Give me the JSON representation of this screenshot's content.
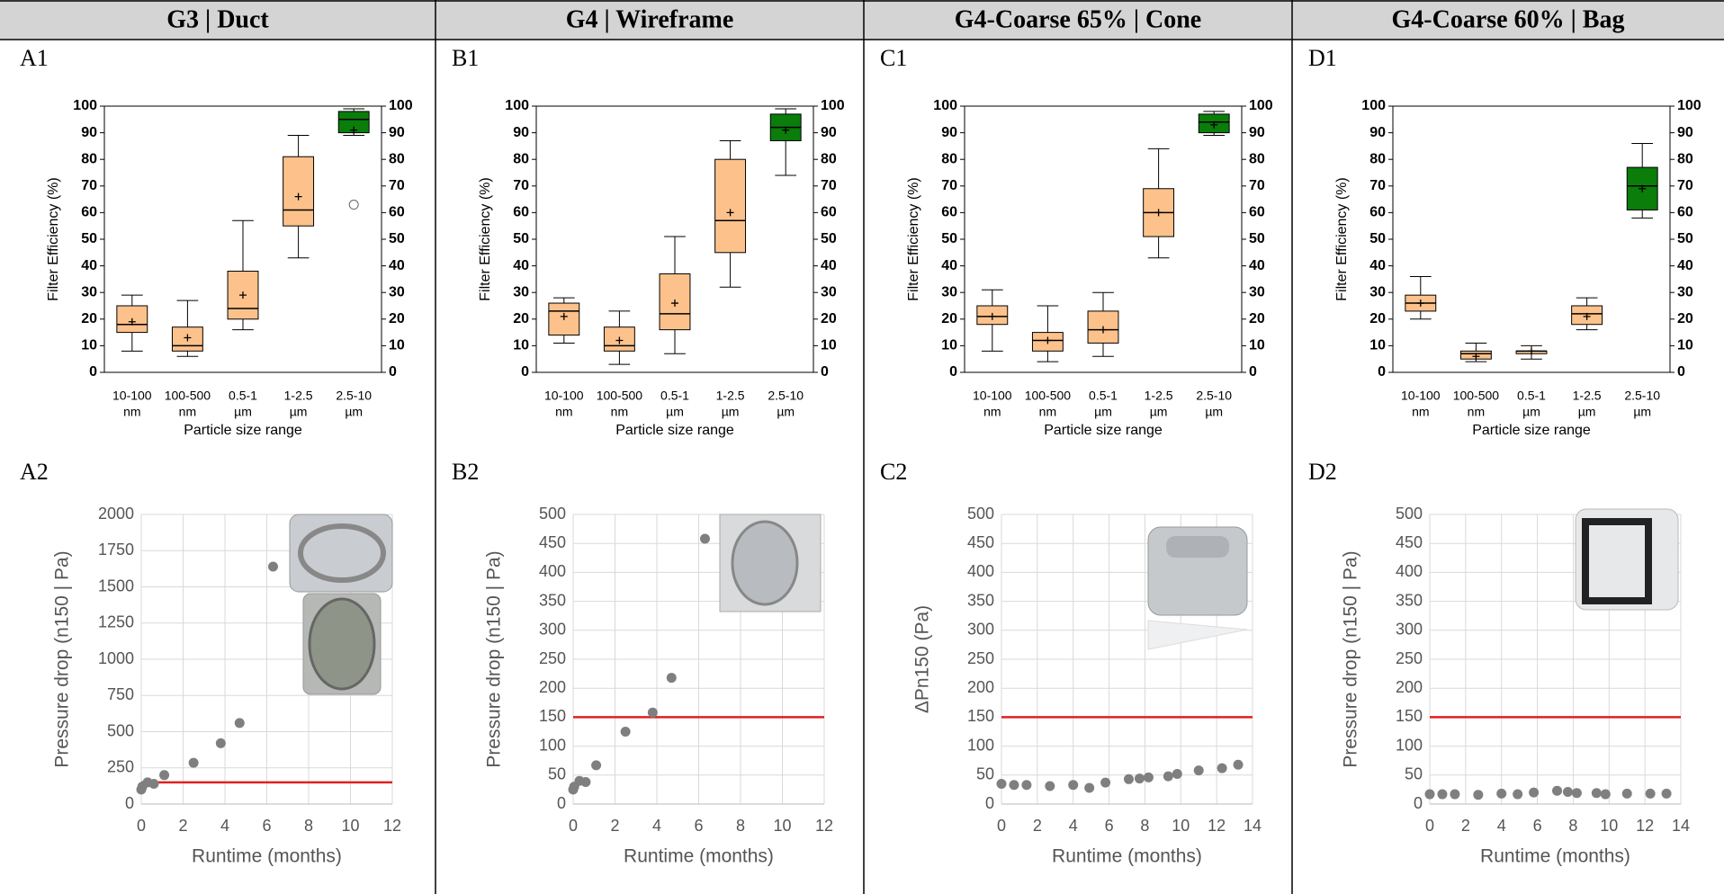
{
  "headers": [
    "G3 | Duct",
    "G4 | Wireframe",
    "G4-Coarse 65% | Cone",
    "G4-Coarse 60% | Bag"
  ],
  "chart_data": [
    {
      "type": "box",
      "label": "A1",
      "ylabel": "Filter Efficiency (%)",
      "xlabel": "Particle size range",
      "categories": [
        [
          "10-100",
          "nm"
        ],
        [
          "100-500",
          "nm"
        ],
        [
          "0.5-1",
          "µm"
        ],
        [
          "1-2.5",
          "µm"
        ],
        [
          "2.5-10",
          "µm"
        ]
      ],
      "ylim": [
        0,
        100
      ],
      "yticks": [
        0,
        10,
        20,
        30,
        40,
        50,
        60,
        70,
        80,
        90,
        100
      ],
      "y2lim": [
        0,
        100
      ],
      "y2ticks": [
        0,
        10,
        20,
        30,
        40,
        50,
        60,
        70,
        80,
        90,
        100
      ],
      "boxes": [
        {
          "min": 8,
          "q1": 15,
          "median": 18,
          "q3": 25,
          "max": 29,
          "mean": 19,
          "color": "#fdc28b"
        },
        {
          "min": 6,
          "q1": 8,
          "median": 10,
          "q3": 17,
          "max": 27,
          "mean": 13,
          "color": "#fdc28b"
        },
        {
          "min": 16,
          "q1": 20,
          "median": 24,
          "q3": 38,
          "max": 57,
          "mean": 29,
          "color": "#fdc28b"
        },
        {
          "min": 43,
          "q1": 55,
          "median": 61,
          "q3": 81,
          "max": 89,
          "mean": 66,
          "color": "#fdc28b"
        },
        {
          "min": 89,
          "q1": 90,
          "median": 95,
          "q3": 98,
          "max": 99,
          "mean": 91,
          "color": "#0a7d0a",
          "outliers": [
            63
          ]
        }
      ]
    },
    {
      "type": "scatter",
      "label": "A2",
      "ylabel": "Pressure drop (n150 | Pa)",
      "xlabel": "Runtime (months)",
      "xlim": [
        0,
        12
      ],
      "xticks": [
        0,
        2,
        4,
        6,
        8,
        10,
        12
      ],
      "ylim": [
        0,
        2000
      ],
      "yticks": [
        0,
        250,
        500,
        750,
        1000,
        1250,
        1500,
        1750,
        2000
      ],
      "grid": true,
      "color": "#7f7f7f",
      "threshold": 150,
      "threshold_color": "#e02020",
      "x": [
        0,
        0.05,
        0.3,
        0.6,
        1.1,
        2.5,
        3.8,
        4.7,
        6.3
      ],
      "values": [
        100,
        120,
        150,
        140,
        200,
        285,
        420,
        560,
        1640
      ]
    },
    {
      "type": "box",
      "label": "B1",
      "ylabel": "Filter Efficiency (%)",
      "xlabel": "Particle size range",
      "categories": [
        [
          "10-100",
          "nm"
        ],
        [
          "100-500",
          "nm"
        ],
        [
          "0.5-1",
          "µm"
        ],
        [
          "1-2.5",
          "µm"
        ],
        [
          "2.5-10",
          "µm"
        ]
      ],
      "ylim": [
        0,
        100
      ],
      "yticks": [
        0,
        10,
        20,
        30,
        40,
        50,
        60,
        70,
        80,
        90,
        100
      ],
      "y2lim": [
        0,
        100
      ],
      "y2ticks": [
        0,
        10,
        20,
        30,
        40,
        50,
        60,
        70,
        80,
        90,
        100
      ],
      "boxes": [
        {
          "min": 11,
          "q1": 14,
          "median": 23,
          "q3": 26,
          "max": 28,
          "mean": 21,
          "color": "#fdc28b"
        },
        {
          "min": 3,
          "q1": 8,
          "median": 10,
          "q3": 17,
          "max": 23,
          "mean": 12,
          "color": "#fdc28b"
        },
        {
          "min": 7,
          "q1": 16,
          "median": 22,
          "q3": 37,
          "max": 51,
          "mean": 26,
          "color": "#fdc28b"
        },
        {
          "min": 32,
          "q1": 45,
          "median": 57,
          "q3": 80,
          "max": 87,
          "mean": 60,
          "color": "#fdc28b"
        },
        {
          "min": 74,
          "q1": 87,
          "median": 92,
          "q3": 97,
          "max": 99,
          "mean": 91,
          "color": "#0a7d0a"
        }
      ]
    },
    {
      "type": "scatter",
      "label": "B2",
      "ylabel": "Pressure drop (n150 | Pa)",
      "xlabel": "Runtime (months)",
      "xlim": [
        0,
        12
      ],
      "xticks": [
        0,
        2,
        4,
        6,
        8,
        10,
        12
      ],
      "ylim": [
        0,
        500
      ],
      "yticks": [
        0,
        50,
        100,
        150,
        200,
        250,
        300,
        350,
        400,
        450,
        500
      ],
      "grid": true,
      "color": "#7f7f7f",
      "threshold": 150,
      "threshold_color": "#e02020",
      "x": [
        0,
        0.05,
        0.3,
        0.6,
        1.1,
        2.5,
        3.8,
        4.7,
        6.3
      ],
      "values": [
        25,
        30,
        40,
        38,
        67,
        125,
        158,
        218,
        458
      ]
    },
    {
      "type": "box",
      "label": "C1",
      "ylabel": "Filter Efficiency (%)",
      "xlabel": "Particle size range",
      "categories": [
        [
          "10-100",
          "nm"
        ],
        [
          "100-500",
          "nm"
        ],
        [
          "0.5-1",
          "µm"
        ],
        [
          "1-2.5",
          "µm"
        ],
        [
          "2.5-10",
          "µm"
        ]
      ],
      "ylim": [
        0,
        100
      ],
      "yticks": [
        0,
        10,
        20,
        30,
        40,
        50,
        60,
        70,
        80,
        90,
        100
      ],
      "y2lim": [
        0,
        100
      ],
      "y2ticks": [
        0,
        10,
        20,
        30,
        40,
        50,
        60,
        70,
        80,
        90,
        100
      ],
      "boxes": [
        {
          "min": 8,
          "q1": 18,
          "median": 21,
          "q3": 25,
          "max": 31,
          "mean": 21,
          "color": "#fdc28b"
        },
        {
          "min": 4,
          "q1": 8,
          "median": 12,
          "q3": 15,
          "max": 25,
          "mean": 12,
          "color": "#fdc28b"
        },
        {
          "min": 6,
          "q1": 11,
          "median": 16,
          "q3": 23,
          "max": 30,
          "mean": 16,
          "color": "#fdc28b"
        },
        {
          "min": 43,
          "q1": 51,
          "median": 60,
          "q3": 69,
          "max": 84,
          "mean": 60,
          "color": "#fdc28b"
        },
        {
          "min": 89,
          "q1": 90,
          "median": 94,
          "q3": 97,
          "max": 98,
          "mean": 93,
          "color": "#0a7d0a"
        }
      ]
    },
    {
      "type": "scatter",
      "label": "C2",
      "ylabel": "ΔPn150 (Pa)",
      "xlabel": "Runtime (months)",
      "xlim": [
        0,
        14
      ],
      "xticks": [
        0,
        2,
        4,
        6,
        8,
        10,
        12,
        14
      ],
      "ylim": [
        0,
        500
      ],
      "yticks": [
        0,
        50,
        100,
        150,
        200,
        250,
        300,
        350,
        400,
        450,
        500
      ],
      "grid": true,
      "color": "#7f7f7f",
      "threshold": 150,
      "threshold_color": "#e02020",
      "x": [
        0,
        0.7,
        1.4,
        2.7,
        4,
        4.9,
        5.8,
        7.1,
        7.7,
        8.2,
        9.3,
        9.8,
        11,
        12.3,
        13.2
      ],
      "values": [
        35,
        33,
        33,
        31,
        33,
        28,
        37,
        43,
        44,
        46,
        48,
        52,
        58,
        62,
        68
      ]
    },
    {
      "type": "box",
      "label": "D1",
      "ylabel": "Filter Efficiency (%)",
      "xlabel": "Particle size range",
      "categories": [
        [
          "10-100",
          "nm"
        ],
        [
          "100-500",
          "nm"
        ],
        [
          "0.5-1",
          "µm"
        ],
        [
          "1-2.5",
          "µm"
        ],
        [
          "2.5-10",
          "µm"
        ]
      ],
      "ylim": [
        0,
        100
      ],
      "yticks": [
        0,
        10,
        20,
        30,
        40,
        50,
        60,
        70,
        80,
        90,
        100
      ],
      "y2lim": [
        0,
        100
      ],
      "y2ticks": [
        0,
        10,
        20,
        30,
        40,
        50,
        60,
        70,
        80,
        90,
        100
      ],
      "boxes": [
        {
          "min": 20,
          "q1": 23,
          "median": 26,
          "q3": 29,
          "max": 36,
          "mean": 26,
          "color": "#fdc28b"
        },
        {
          "min": 4,
          "q1": 5,
          "median": 7,
          "q3": 8,
          "max": 11,
          "mean": 6,
          "color": "#fdc28b"
        },
        {
          "min": 5,
          "q1": 7,
          "median": 8,
          "q3": 8,
          "max": 10,
          "mean": 8,
          "color": "#fdc28b"
        },
        {
          "min": 16,
          "q1": 18,
          "median": 22,
          "q3": 25,
          "max": 28,
          "mean": 21,
          "color": "#fdc28b"
        },
        {
          "min": 58,
          "q1": 61,
          "median": 70,
          "q3": 77,
          "max": 86,
          "mean": 69,
          "color": "#0a7d0a"
        }
      ]
    },
    {
      "type": "scatter",
      "label": "D2",
      "ylabel": "Pressure drop (n150 | Pa)",
      "xlabel": "Runtime (months)",
      "xlim": [
        0,
        14
      ],
      "xticks": [
        0,
        2,
        4,
        6,
        8,
        10,
        12,
        14
      ],
      "ylim": [
        0,
        500
      ],
      "yticks": [
        0,
        50,
        100,
        150,
        200,
        250,
        300,
        350,
        400,
        450,
        500
      ],
      "grid": true,
      "color": "#7f7f7f",
      "threshold": 150,
      "threshold_color": "#e02020",
      "x": [
        0,
        0.7,
        1.4,
        2.7,
        4,
        4.9,
        5.8,
        7.1,
        7.7,
        8.2,
        9.3,
        9.8,
        11,
        12.3,
        13.2
      ],
      "values": [
        17,
        17,
        17,
        16,
        18,
        17,
        20,
        23,
        21,
        19,
        19,
        17,
        18,
        18,
        18
      ]
    }
  ]
}
